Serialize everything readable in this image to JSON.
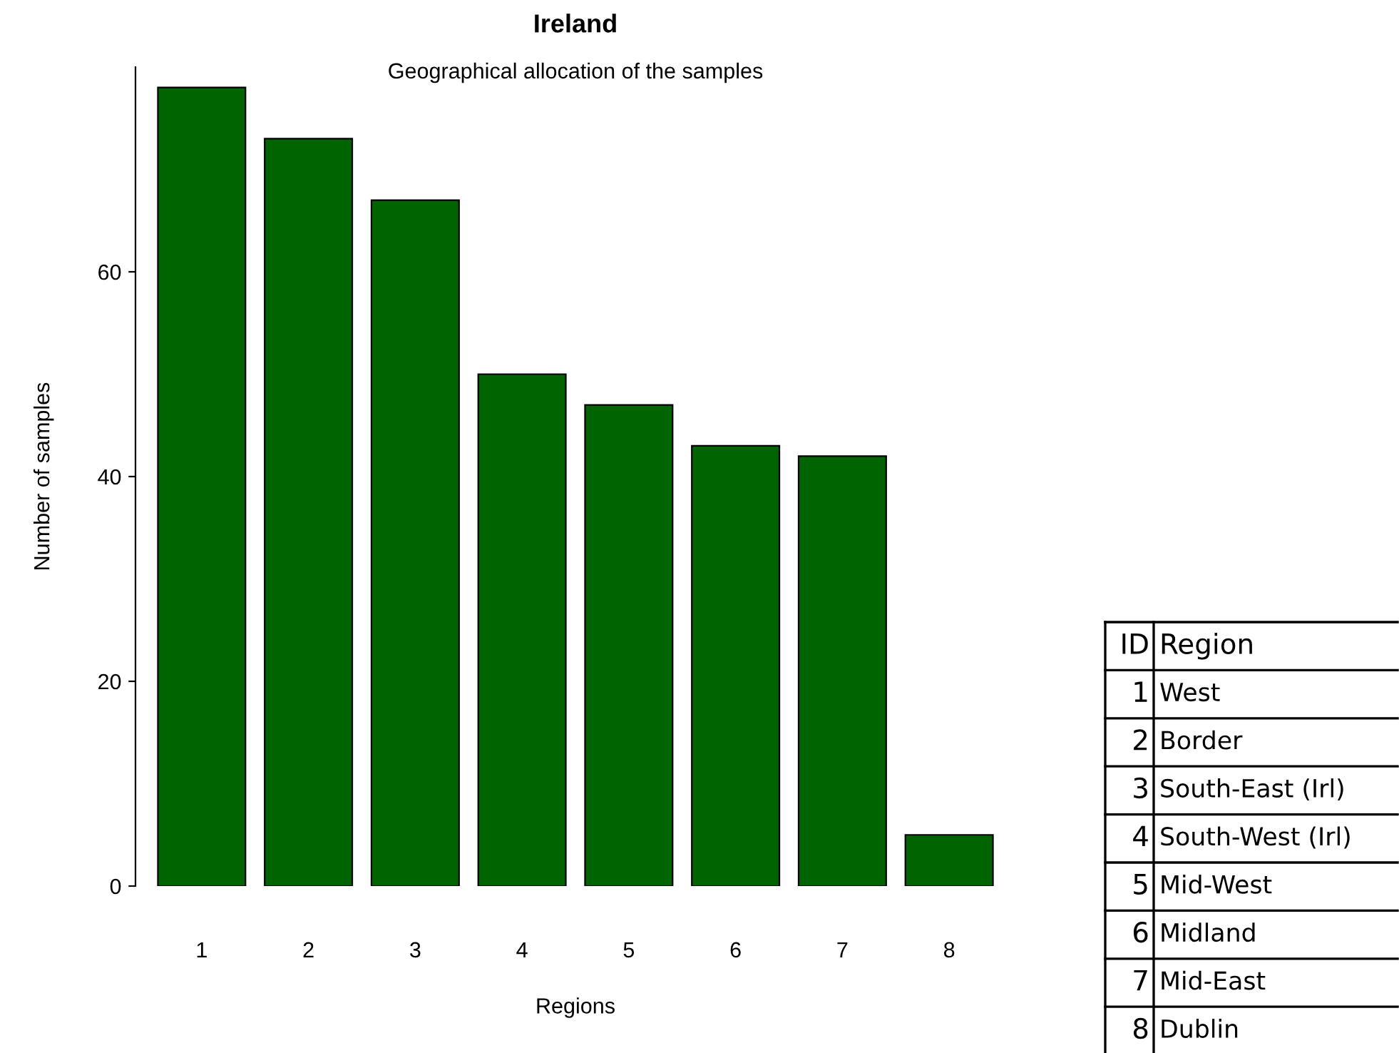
{
  "chart_data": {
    "type": "bar",
    "title": "Ireland",
    "subtitle": "Geographical allocation of the samples",
    "xlabel": "Regions",
    "ylabel": "Number of samples",
    "categories": [
      "1",
      "2",
      "3",
      "4",
      "5",
      "6",
      "7",
      "8"
    ],
    "values": [
      78,
      73,
      67,
      50,
      47,
      43,
      42,
      5
    ],
    "color": "#006400",
    "ylim": [
      0,
      80
    ],
    "yticks": [
      0,
      20,
      40,
      60
    ],
    "grid": false,
    "legend": false,
    "annotations": [
      "ID",
      "Region",
      "West",
      "Border",
      "South-East (Irl)",
      "South-West (Irl)",
      "Mid-West",
      "Midland",
      "Mid-East",
      "Dublin"
    ]
  }
}
